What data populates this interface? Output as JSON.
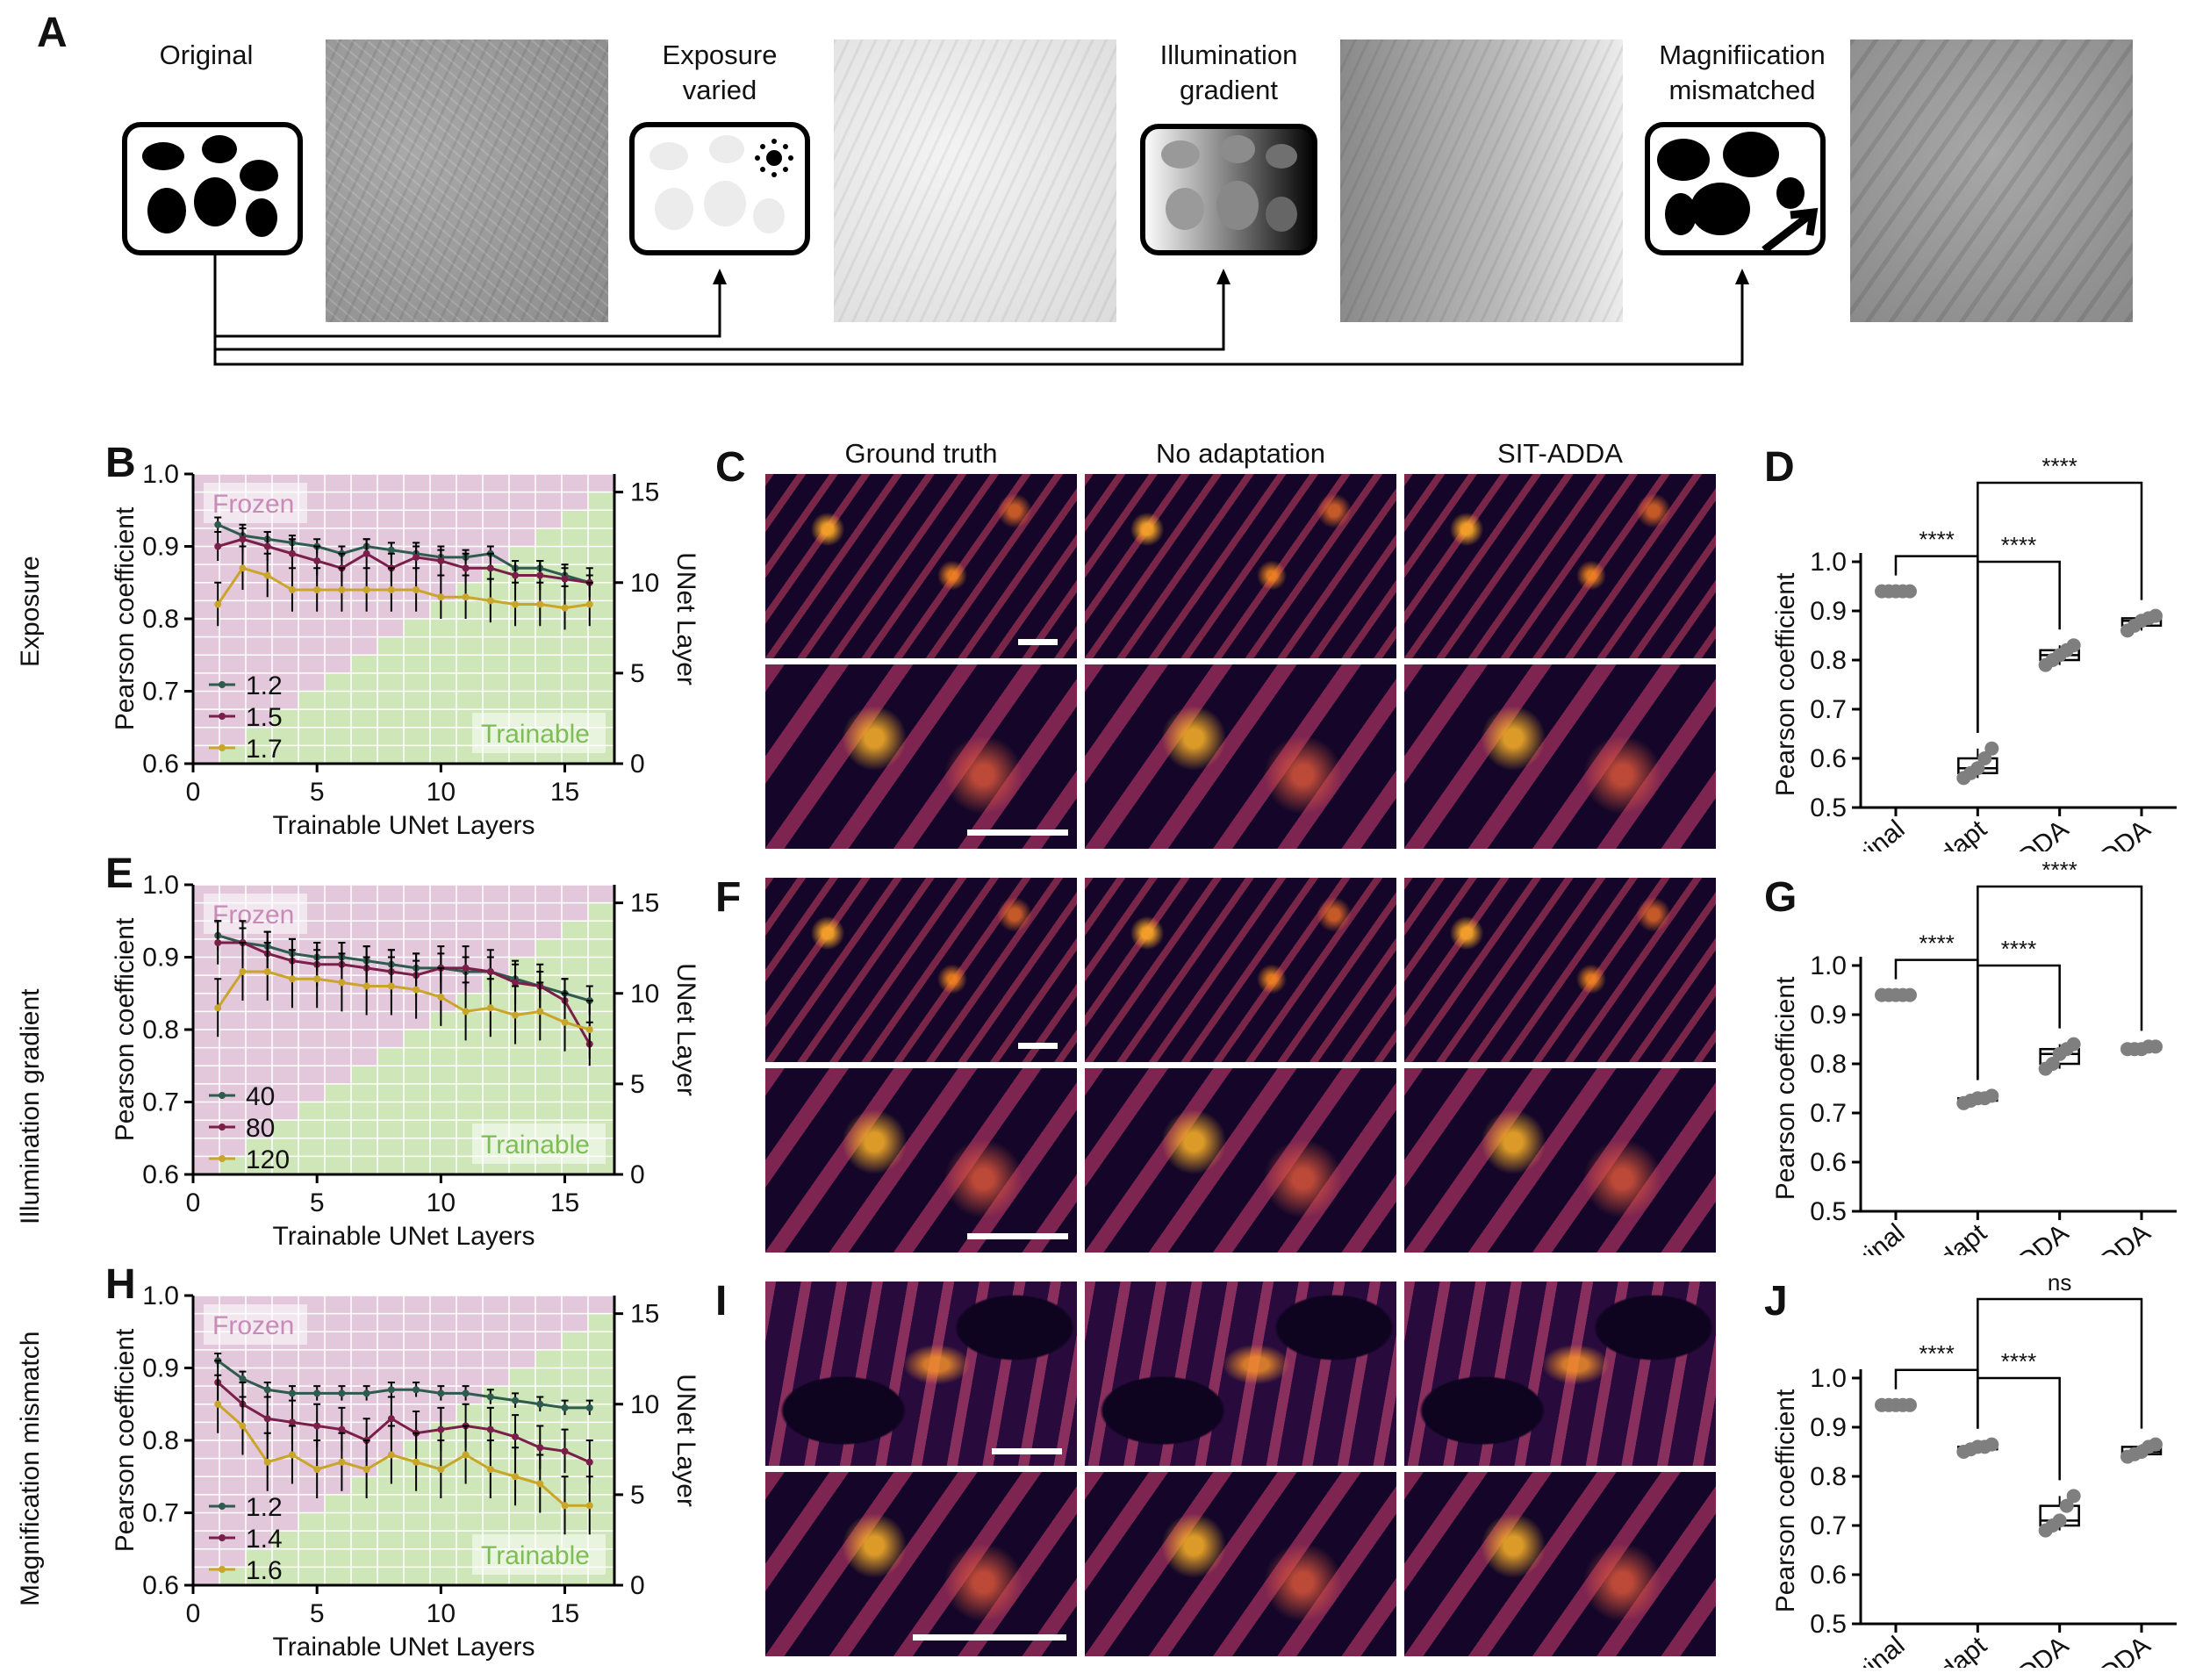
{
  "panels": {
    "A": {
      "letter": "A",
      "labels": {
        "original": "Original",
        "exposure_1": "Exposure",
        "exposure_2": "varied",
        "illum_1": "Illumination",
        "illum_2": "gradient",
        "mag_1": "Magnifiication",
        "mag_2": "mismatched"
      }
    },
    "row_labels": [
      "Exposure",
      "Illumination gradient",
      "Magnification mismatch"
    ],
    "C_headers": [
      "Ground truth",
      "No adaptation",
      "SIT-ADDA"
    ],
    "letters": {
      "B": "B",
      "C": "C",
      "D": "D",
      "E": "E",
      "F": "F",
      "G": "G",
      "H": "H",
      "I": "I",
      "J": "J"
    },
    "region_labels": {
      "frozen": "Frozen",
      "trainable": "Trainable"
    }
  },
  "colors": {
    "series1": "#2e5b4e",
    "series2": "#7a1f4a",
    "series3": "#c9a52a",
    "frozen": "#e3c8dc",
    "trainable": "#cfe6b8",
    "frozen_text": "#c88ab7",
    "trainable_text": "#7dbd55"
  },
  "chart_data": [
    {
      "id": "B",
      "type": "line",
      "xlabel": "Trainable UNet Layers",
      "ylabel": "Pearson coefficient",
      "y2label": "UNet Layer",
      "xlim": [
        0,
        17
      ],
      "ylim": [
        0.6,
        1.0
      ],
      "y2lim": [
        0,
        16
      ],
      "xticks": [
        0,
        5,
        10,
        15
      ],
      "yticks": [
        0.6,
        0.7,
        0.8,
        0.9,
        1.0
      ],
      "y2ticks": [
        0,
        5,
        10,
        15
      ],
      "x": [
        1,
        2,
        3,
        4,
        5,
        6,
        7,
        8,
        9,
        10,
        11,
        12,
        13,
        14,
        15,
        16
      ],
      "series": [
        {
          "name": "1.2",
          "values": [
            0.93,
            0.915,
            0.91,
            0.905,
            0.9,
            0.89,
            0.9,
            0.895,
            0.89,
            0.885,
            0.885,
            0.89,
            0.87,
            0.87,
            0.86,
            0.85
          ],
          "err": 0.01
        },
        {
          "name": "1.5",
          "values": [
            0.9,
            0.91,
            0.9,
            0.89,
            0.88,
            0.87,
            0.89,
            0.87,
            0.885,
            0.88,
            0.87,
            0.87,
            0.86,
            0.86,
            0.855,
            0.85
          ],
          "err": 0.02
        },
        {
          "name": "1.7",
          "values": [
            0.82,
            0.87,
            0.86,
            0.84,
            0.84,
            0.84,
            0.84,
            0.84,
            0.84,
            0.83,
            0.83,
            0.825,
            0.82,
            0.82,
            0.815,
            0.82
          ],
          "err": 0.03
        }
      ]
    },
    {
      "id": "E",
      "type": "line",
      "xlabel": "Trainable UNet Layers",
      "ylabel": "Pearson coefficient",
      "y2label": "UNet Layer",
      "xlim": [
        0,
        17
      ],
      "ylim": [
        0.6,
        1.0
      ],
      "y2lim": [
        0,
        16
      ],
      "xticks": [
        0,
        5,
        10,
        15
      ],
      "yticks": [
        0.6,
        0.7,
        0.8,
        0.9,
        1.0
      ],
      "y2ticks": [
        0,
        5,
        10,
        15
      ],
      "x": [
        1,
        2,
        3,
        4,
        5,
        6,
        7,
        8,
        9,
        10,
        11,
        12,
        13,
        14,
        15,
        16
      ],
      "series": [
        {
          "name": "40",
          "values": [
            0.93,
            0.92,
            0.915,
            0.905,
            0.9,
            0.9,
            0.895,
            0.89,
            0.885,
            0.885,
            0.88,
            0.88,
            0.87,
            0.86,
            0.85,
            0.84
          ],
          "err": 0.02
        },
        {
          "name": "80",
          "values": [
            0.92,
            0.92,
            0.905,
            0.895,
            0.89,
            0.89,
            0.885,
            0.88,
            0.875,
            0.885,
            0.885,
            0.88,
            0.865,
            0.86,
            0.84,
            0.78
          ],
          "err": 0.03
        },
        {
          "name": "120",
          "values": [
            0.83,
            0.88,
            0.88,
            0.87,
            0.87,
            0.865,
            0.86,
            0.86,
            0.855,
            0.845,
            0.825,
            0.83,
            0.82,
            0.825,
            0.81,
            0.8
          ],
          "err": 0.04
        }
      ]
    },
    {
      "id": "H",
      "type": "line",
      "xlabel": "Trainable UNet Layers",
      "ylabel": "Pearson coefficient",
      "y2label": "UNet Layer",
      "xlim": [
        0,
        17
      ],
      "ylim": [
        0.6,
        1.0
      ],
      "y2lim": [
        0,
        16
      ],
      "xticks": [
        0,
        5,
        10,
        15
      ],
      "yticks": [
        0.6,
        0.7,
        0.8,
        0.9,
        1.0
      ],
      "y2ticks": [
        0,
        5,
        10,
        15
      ],
      "x": [
        1,
        2,
        3,
        4,
        5,
        6,
        7,
        8,
        9,
        10,
        11,
        12,
        13,
        14,
        15,
        16
      ],
      "series": [
        {
          "name": "1.2",
          "values": [
            0.91,
            0.885,
            0.87,
            0.865,
            0.865,
            0.865,
            0.865,
            0.87,
            0.87,
            0.865,
            0.865,
            0.86,
            0.855,
            0.85,
            0.845,
            0.845
          ],
          "err": 0.01
        },
        {
          "name": "1.4",
          "values": [
            0.88,
            0.85,
            0.83,
            0.825,
            0.82,
            0.815,
            0.8,
            0.83,
            0.81,
            0.815,
            0.82,
            0.815,
            0.805,
            0.79,
            0.785,
            0.77
          ],
          "err": 0.03
        },
        {
          "name": "1.6",
          "values": [
            0.85,
            0.82,
            0.77,
            0.78,
            0.76,
            0.77,
            0.76,
            0.78,
            0.77,
            0.76,
            0.78,
            0.76,
            0.75,
            0.74,
            0.71,
            0.71
          ],
          "err": 0.04
        }
      ]
    },
    {
      "id": "D",
      "type": "box",
      "ylabel": "Pearson coefficient",
      "ylim": [
        0.5,
        1.0
      ],
      "yticks": [
        0.5,
        0.6,
        0.7,
        0.8,
        0.9,
        1.0
      ],
      "categories": [
        "Original",
        "No adapt",
        "ADDA",
        "SIT-ADDA"
      ],
      "values": [
        [
          0.94,
          0.94,
          0.94,
          0.94,
          0.94
        ],
        [
          0.56,
          0.57,
          0.58,
          0.6,
          0.62
        ],
        [
          0.79,
          0.8,
          0.81,
          0.82,
          0.83
        ],
        [
          0.86,
          0.87,
          0.88,
          0.885,
          0.89
        ]
      ],
      "sig": [
        {
          "from": 0,
          "to": 1,
          "label": "****"
        },
        {
          "from": 1,
          "to": 2,
          "label": "****"
        },
        {
          "from": 1,
          "to": 3,
          "label": "****"
        }
      ]
    },
    {
      "id": "G",
      "type": "box",
      "ylabel": "Pearson coefficient",
      "ylim": [
        0.5,
        1.0
      ],
      "yticks": [
        0.5,
        0.6,
        0.7,
        0.8,
        0.9,
        1.0
      ],
      "categories": [
        "Original",
        "No adapt",
        "ADDA",
        "SIT-ADDA"
      ],
      "values": [
        [
          0.94,
          0.94,
          0.94,
          0.94,
          0.94
        ],
        [
          0.72,
          0.725,
          0.73,
          0.73,
          0.735
        ],
        [
          0.79,
          0.8,
          0.82,
          0.83,
          0.84
        ],
        [
          0.83,
          0.83,
          0.83,
          0.835,
          0.835
        ]
      ],
      "sig": [
        {
          "from": 0,
          "to": 1,
          "label": "****"
        },
        {
          "from": 1,
          "to": 2,
          "label": "****"
        },
        {
          "from": 1,
          "to": 3,
          "label": "****"
        }
      ]
    },
    {
      "id": "J",
      "type": "box",
      "ylabel": "Pearson coefficient",
      "ylim": [
        0.5,
        1.0
      ],
      "yticks": [
        0.5,
        0.6,
        0.7,
        0.8,
        0.9,
        1.0
      ],
      "categories": [
        "Original",
        "No adapt",
        "ADDA",
        "SIT-ADDA"
      ],
      "values": [
        [
          0.945,
          0.945,
          0.945,
          0.945,
          0.945
        ],
        [
          0.85,
          0.855,
          0.86,
          0.86,
          0.865
        ],
        [
          0.69,
          0.7,
          0.71,
          0.74,
          0.76
        ],
        [
          0.84,
          0.845,
          0.85,
          0.86,
          0.865
        ]
      ],
      "sig": [
        {
          "from": 0,
          "to": 1,
          "label": "****"
        },
        {
          "from": 1,
          "to": 2,
          "label": "****"
        },
        {
          "from": 1,
          "to": 3,
          "label": "ns"
        }
      ]
    }
  ]
}
